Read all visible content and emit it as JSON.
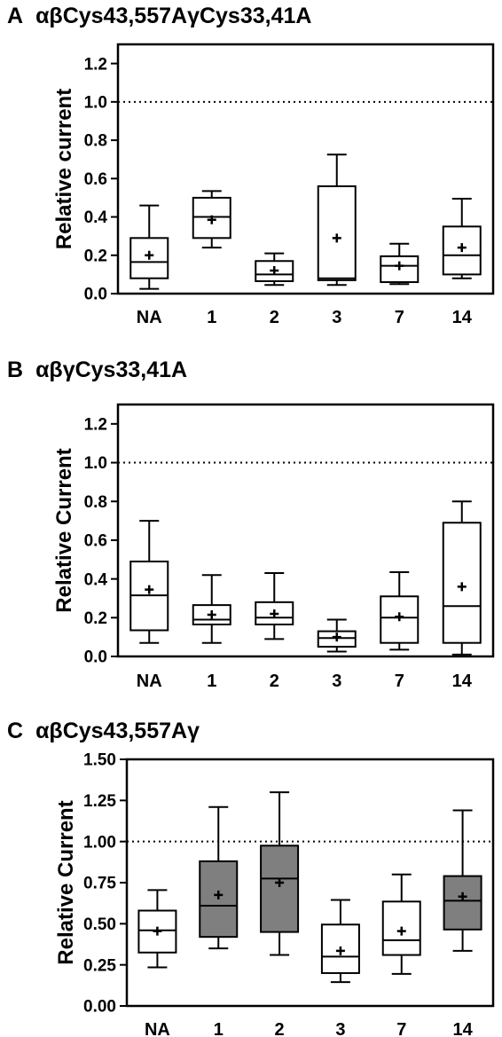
{
  "colors": {
    "open_box": "#ffffff",
    "filled_box": "#7f7f7f",
    "stroke": "#000000"
  },
  "chart_data": [
    {
      "type": "boxplot",
      "panel": "A",
      "title": "αβCys43,557AγCys33,41A",
      "ylabel": "Relative current",
      "xlabel": "",
      "ylim": [
        0,
        1.3
      ],
      "yticks": [
        "0.0",
        "0.2",
        "0.4",
        "0.6",
        "0.8",
        "1.0",
        "1.2"
      ],
      "reference_line": 1.0,
      "categories": [
        "NA",
        "1",
        "2",
        "3",
        "7",
        "14"
      ],
      "boxes": [
        {
          "min": 0.025,
          "q1": 0.08,
          "median": 0.165,
          "q3": 0.29,
          "max": 0.46,
          "mean": 0.2,
          "filled": false
        },
        {
          "min": 0.24,
          "q1": 0.29,
          "median": 0.4,
          "q3": 0.5,
          "max": 0.535,
          "mean": 0.385,
          "filled": false
        },
        {
          "min": 0.045,
          "q1": 0.065,
          "median": 0.1,
          "q3": 0.17,
          "max": 0.21,
          "mean": 0.12,
          "filled": false
        },
        {
          "min": 0.045,
          "q1": 0.07,
          "median": 0.08,
          "q3": 0.56,
          "max": 0.725,
          "mean": 0.29,
          "filled": false
        },
        {
          "min": 0.05,
          "q1": 0.06,
          "median": 0.145,
          "q3": 0.195,
          "max": 0.26,
          "mean": 0.145,
          "filled": false
        },
        {
          "min": 0.08,
          "q1": 0.1,
          "median": 0.2,
          "q3": 0.35,
          "max": 0.495,
          "mean": 0.24,
          "filled": false
        }
      ]
    },
    {
      "type": "boxplot",
      "panel": "B",
      "title": "αβγCys33,41A",
      "ylabel": "Relative Current",
      "xlabel": "",
      "ylim": [
        0,
        1.3
      ],
      "yticks": [
        "0.0",
        "0.2",
        "0.4",
        "0.6",
        "0.8",
        "1.0",
        "1.2"
      ],
      "reference_line": 1.0,
      "categories": [
        "NA",
        "1",
        "2",
        "3",
        "7",
        "14"
      ],
      "boxes": [
        {
          "min": 0.07,
          "q1": 0.135,
          "median": 0.315,
          "q3": 0.49,
          "max": 0.7,
          "mean": 0.345,
          "filled": false
        },
        {
          "min": 0.07,
          "q1": 0.165,
          "median": 0.19,
          "q3": 0.265,
          "max": 0.42,
          "mean": 0.215,
          "filled": false
        },
        {
          "min": 0.09,
          "q1": 0.165,
          "median": 0.2,
          "q3": 0.28,
          "max": 0.43,
          "mean": 0.22,
          "filled": false
        },
        {
          "min": 0.025,
          "q1": 0.05,
          "median": 0.095,
          "q3": 0.13,
          "max": 0.19,
          "mean": 0.1,
          "filled": false
        },
        {
          "min": 0.035,
          "q1": 0.07,
          "median": 0.2,
          "q3": 0.31,
          "max": 0.435,
          "mean": 0.205,
          "filled": false
        },
        {
          "min": 0.01,
          "q1": 0.07,
          "median": 0.26,
          "q3": 0.69,
          "max": 0.8,
          "mean": 0.36,
          "filled": false
        }
      ]
    },
    {
      "type": "boxplot",
      "panel": "C",
      "title": "αβCys43,557Aγ",
      "ylabel": "Relative Current",
      "xlabel": "",
      "ylim": [
        0,
        1.5
      ],
      "yticks": [
        "0.00",
        "0.25",
        "0.50",
        "0.75",
        "1.00",
        "1.25",
        "1.50"
      ],
      "reference_line": 1.0,
      "categories": [
        "NA",
        "1",
        "2",
        "3",
        "7",
        "14"
      ],
      "boxes": [
        {
          "min": 0.235,
          "q1": 0.325,
          "median": 0.46,
          "q3": 0.58,
          "max": 0.705,
          "mean": 0.455,
          "filled": false
        },
        {
          "min": 0.35,
          "q1": 0.42,
          "median": 0.61,
          "q3": 0.88,
          "max": 1.21,
          "mean": 0.675,
          "filled": true
        },
        {
          "min": 0.31,
          "q1": 0.45,
          "median": 0.775,
          "q3": 0.975,
          "max": 1.3,
          "mean": 0.75,
          "filled": true
        },
        {
          "min": 0.145,
          "q1": 0.2,
          "median": 0.3,
          "q3": 0.495,
          "max": 0.645,
          "mean": 0.335,
          "filled": false
        },
        {
          "min": 0.195,
          "q1": 0.31,
          "median": 0.4,
          "q3": 0.635,
          "max": 0.8,
          "mean": 0.455,
          "filled": false
        },
        {
          "min": 0.335,
          "q1": 0.465,
          "median": 0.64,
          "q3": 0.79,
          "max": 1.19,
          "mean": 0.665,
          "filled": true
        }
      ]
    }
  ]
}
